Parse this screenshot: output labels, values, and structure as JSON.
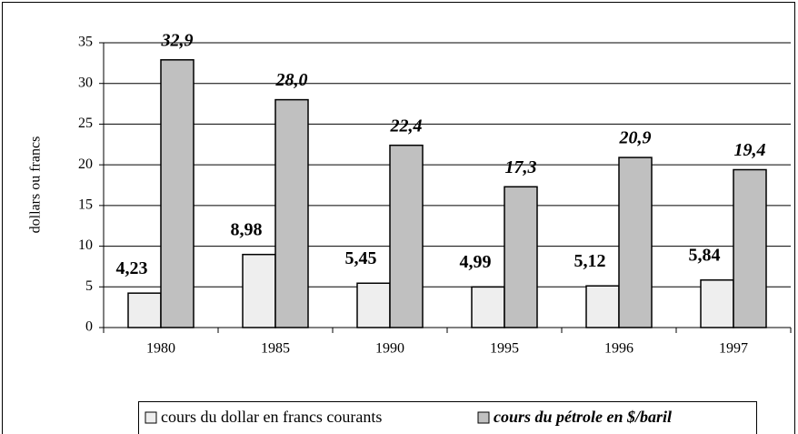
{
  "chart_data": {
    "type": "bar",
    "y_label": "dollars ou francs",
    "categories": [
      "1980",
      "1985",
      "1990",
      "1995",
      "1996",
      "1997"
    ],
    "series": [
      {
        "name": "cours du dollar en francs courants",
        "color": "#eeeeee",
        "values": [
          4.23,
          8.98,
          5.45,
          4.99,
          5.12,
          5.84
        ],
        "value_labels": [
          "4,23",
          "8,98",
          "5,45",
          "4,99",
          "5,12",
          "5,84"
        ]
      },
      {
        "name": "cours du pétrole en $/baril",
        "color": "#c0c0c0",
        "values": [
          32.9,
          28,
          22.4,
          17.3,
          20.9,
          19.4
        ],
        "value_labels": [
          "32,9",
          "28,0",
          "22,4",
          "17,3",
          "20,9",
          "19,4"
        ]
      }
    ],
    "ylim": [
      0,
      35
    ],
    "yticks": [
      0,
      5,
      10,
      15,
      20,
      25,
      30,
      35
    ],
    "grid": true,
    "legend": "bottom"
  }
}
